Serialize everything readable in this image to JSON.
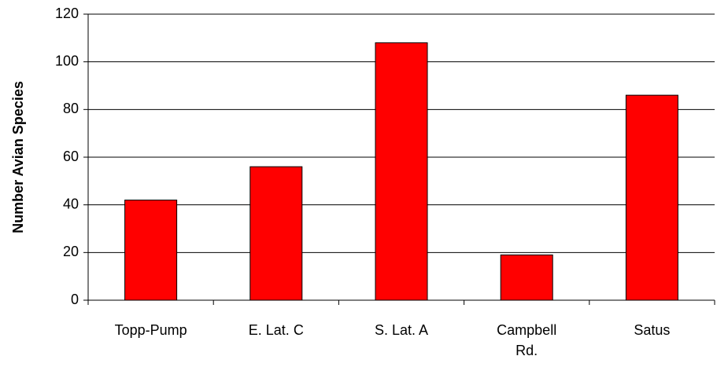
{
  "chart_data": {
    "type": "bar",
    "y_label": "Number Avian Species",
    "categories": [
      "Topp-Pump",
      "E. Lat. C",
      "S. Lat. A",
      "Campbell Rd.",
      "Satus"
    ],
    "values": [
      42,
      56,
      108,
      19,
      86
    ],
    "color": "#ff0000",
    "ylim": [
      0,
      120
    ],
    "yticks": [
      0,
      20,
      40,
      60,
      80,
      100,
      120
    ],
    "grid": true
  }
}
